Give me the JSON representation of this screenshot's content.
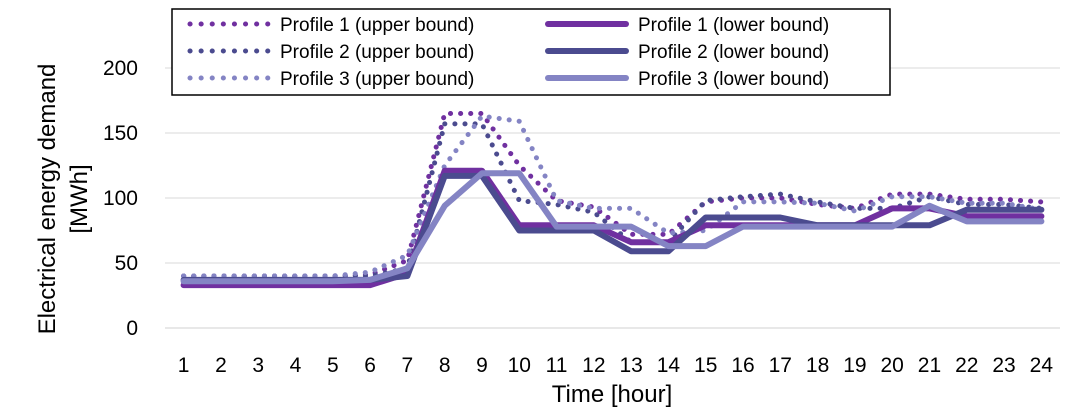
{
  "chart_data": {
    "type": "line",
    "title": "",
    "xlabel": "Time [hour]",
    "ylabel_lines": [
      "Electrical energy demand",
      "[MWh]"
    ],
    "ylim": [
      0,
      200
    ],
    "yticks": [
      0,
      50,
      100,
      150,
      200
    ],
    "grid": true,
    "legend_position": "top",
    "x": [
      1,
      2,
      3,
      4,
      5,
      6,
      7,
      8,
      9,
      10,
      11,
      12,
      13,
      14,
      15,
      16,
      17,
      18,
      19,
      20,
      21,
      22,
      23,
      24
    ],
    "series": [
      {
        "name": "Profile 1 (upper bound)",
        "style": "dotted",
        "color": "#7030A0",
        "values": [
          40,
          40,
          40,
          40,
          40,
          41,
          52,
          165,
          165,
          125,
          98,
          93,
          72,
          72,
          97,
          100,
          100,
          95,
          92,
          103,
          103,
          99,
          99,
          97
        ]
      },
      {
        "name": "Profile 1 (lower bound)",
        "style": "solid",
        "color": "#7030A0",
        "values": [
          33,
          33,
          33,
          33,
          33,
          33,
          42,
          121,
          121,
          79,
          79,
          79,
          66,
          66,
          79,
          79,
          79,
          79,
          79,
          92,
          92,
          86,
          86,
          86
        ]
      },
      {
        "name": "Profile 2 (upper bound)",
        "style": "dotted",
        "color": "#4B4B8F",
        "values": [
          40,
          40,
          40,
          40,
          40,
          40,
          46,
          157,
          157,
          98,
          95,
          89,
          66,
          66,
          98,
          101,
          103,
          97,
          92,
          92,
          101,
          95,
          95,
          92
        ]
      },
      {
        "name": "Profile 2 (lower bound)",
        "style": "solid",
        "color": "#4B4B8F",
        "values": [
          37,
          37,
          37,
          37,
          37,
          37,
          40,
          117,
          117,
          75,
          75,
          75,
          59,
          59,
          85,
          85,
          85,
          79,
          79,
          79,
          79,
          91,
          91,
          91
        ]
      },
      {
        "name": "Profile 3 (upper bound)",
        "style": "dotted",
        "color": "#8484C4",
        "values": [
          40,
          40,
          40,
          40,
          40,
          43,
          56,
          125,
          163,
          159,
          98,
          92,
          92,
          73,
          75,
          97,
          97,
          96,
          90,
          101,
          101,
          96,
          96,
          91
        ]
      },
      {
        "name": "Profile 3 (lower bound)",
        "style": "solid",
        "color": "#8484C4",
        "values": [
          36,
          36,
          36,
          36,
          36,
          37,
          46,
          94,
          119,
          119,
          78,
          78,
          78,
          63,
          63,
          78,
          78,
          78,
          78,
          78,
          94,
          82,
          82,
          82
        ]
      }
    ]
  }
}
